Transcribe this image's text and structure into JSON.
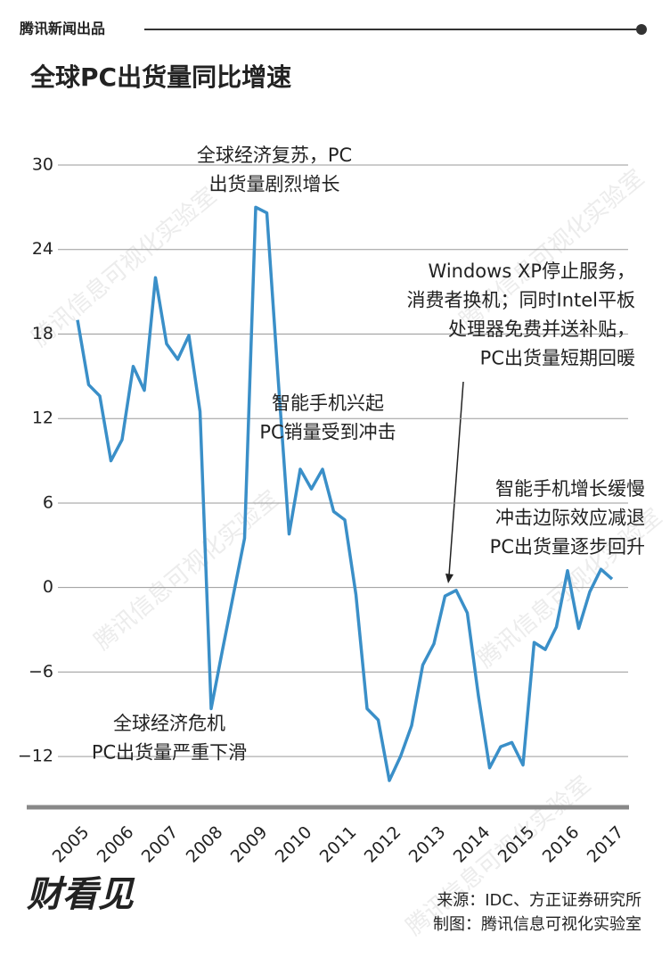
{
  "header": "腾讯新闻出品",
  "chart_data": {
    "type": "line",
    "title": "全球PC出货量同比增速",
    "x": [
      2005,
      2005.25,
      2005.5,
      2005.75,
      2006,
      2006.25,
      2006.5,
      2006.75,
      2007,
      2007.25,
      2007.5,
      2007.75,
      2008,
      2008.25,
      2008.5,
      2008.75,
      2009,
      2009.25,
      2009.5,
      2009.75,
      2010,
      2010.25,
      2010.5,
      2010.75,
      2011,
      2011.25,
      2011.5,
      2011.75,
      2012,
      2012.25,
      2012.5,
      2012.75,
      2013,
      2013.25,
      2013.5,
      2013.75,
      2014,
      2014.25,
      2014.5,
      2014.75,
      2015,
      2015.25,
      2015.5,
      2015.75,
      2016,
      2016.25,
      2016.5,
      2016.75,
      2017
    ],
    "series": [
      {
        "color": "#3a8fc8",
        "values": [
          19,
          14.4,
          13.6,
          9.0,
          10.5,
          15.7,
          14.0,
          22.0,
          17.3,
          16.2,
          17.9,
          12.5,
          -8.6,
          -4.5,
          -0.5,
          3.5,
          27.0,
          26.6,
          15.0,
          3.8,
          8.4,
          7.0,
          8.4,
          5.4,
          4.8,
          -0.5,
          -8.6,
          -9.4,
          -13.7,
          -12.0,
          -9.8,
          -5.5,
          -4.0,
          -0.6,
          -0.2,
          -1.8,
          -7.7,
          -12.8,
          -11.3,
          -11.0,
          -12.6,
          -3.9,
          -4.4,
          -2.8,
          1.2,
          -2.9,
          -0.3,
          1.3,
          0.6
        ]
      }
    ],
    "xlim": [
      2004.6,
      2017.5
    ],
    "xticks": [
      2005,
      2006,
      2007,
      2008,
      2009,
      2010,
      2011,
      2012,
      2013,
      2014,
      2015,
      2016,
      2017
    ],
    "ylim": [
      -15.6,
      30
    ],
    "yticks": [
      30,
      24,
      18,
      12,
      6,
      0,
      {
        "value": -6,
        "label": "−6"
      },
      {
        "value": -12,
        "label": "−12"
      }
    ],
    "grid": true,
    "annotations": [
      [
        "全球经济复苏，PC",
        "出货量剧烈增长"
      ],
      [
        "智能手机兴起",
        "PC销量受到冲击"
      ],
      [
        "Windows XP停止服务，",
        "消费者换机；同时Intel平板",
        "处理器免费并送补贴，",
        "PC出货量短期回暖"
      ],
      [
        "智能手机增长缓慢",
        "冲击边际效应减退",
        "PC出货量逐步回升"
      ],
      [
        "全球经济危机",
        "PC出货量严重下滑"
      ]
    ]
  },
  "source": "来源：IDC、方正证券研究所",
  "credit": "制图：腾讯信息可视化实验室",
  "brand": "财看见",
  "watermark": "腾讯信息可视化实验室"
}
